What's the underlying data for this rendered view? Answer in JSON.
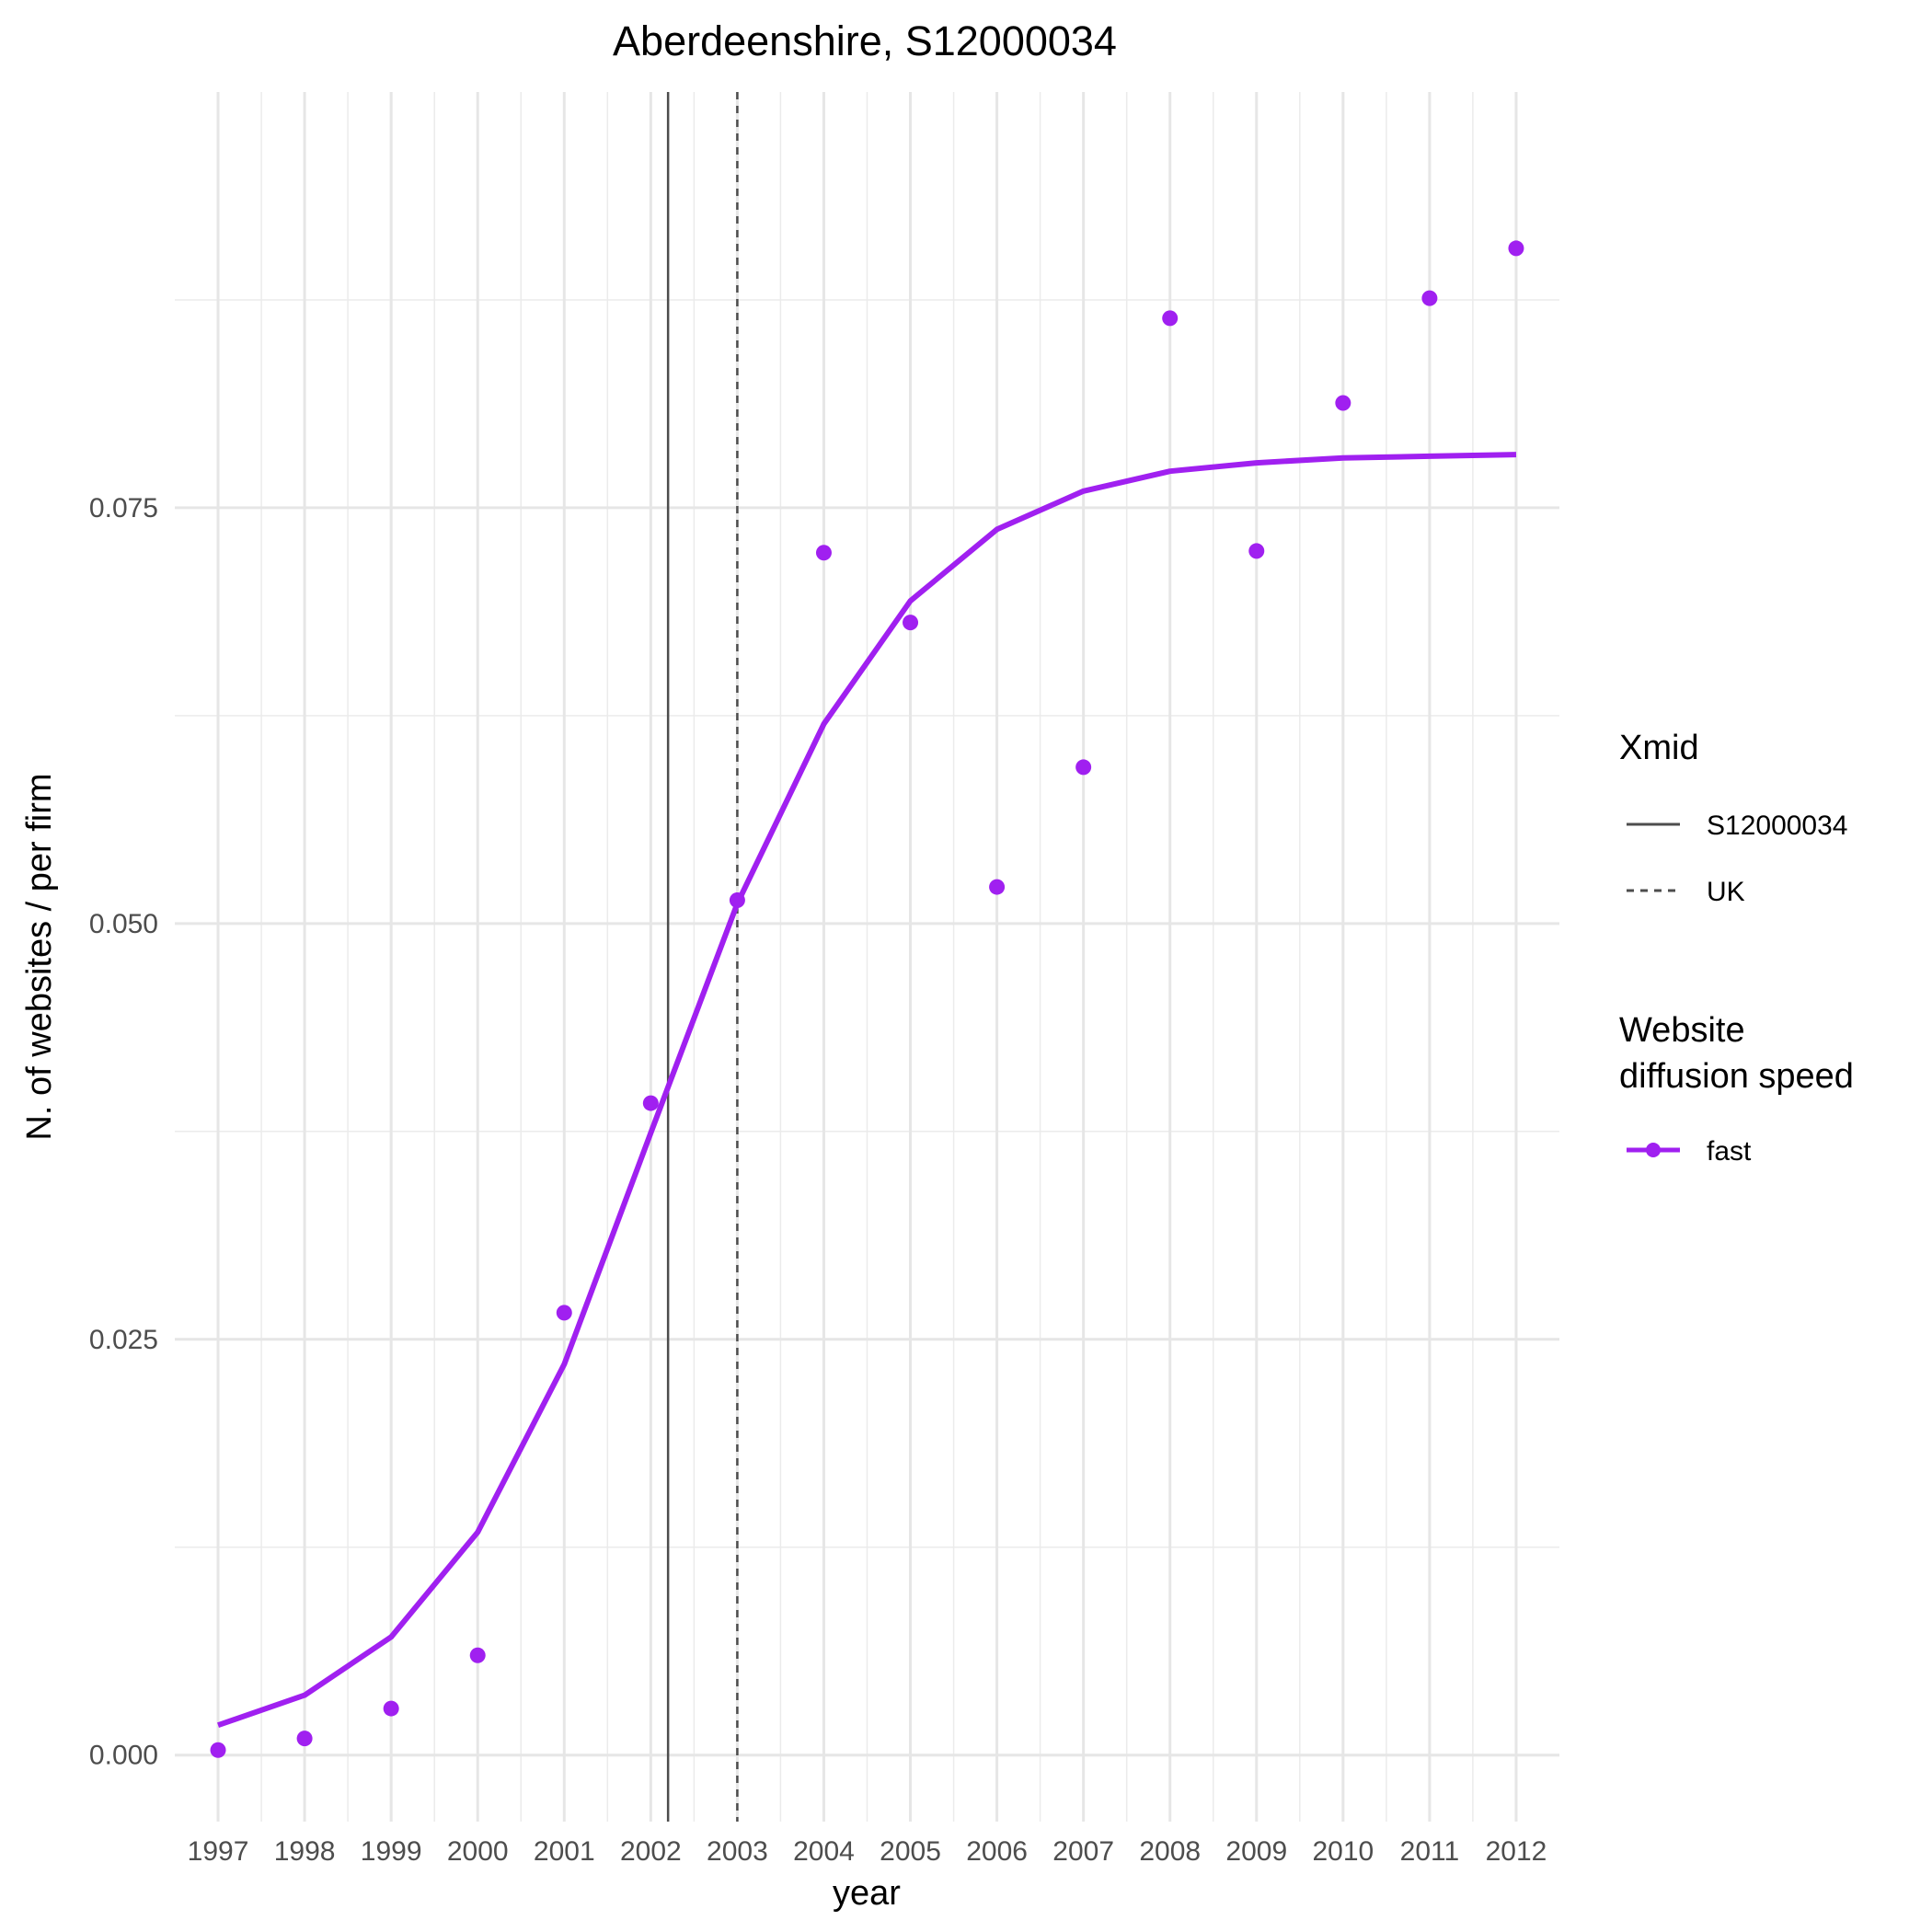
{
  "chart_data": {
    "type": "line",
    "title": "Aberdeenshire, S12000034",
    "xlabel": "year",
    "ylabel": "N. of websites / per firm",
    "x_ticks": [
      "1997",
      "1998",
      "1999",
      "2000",
      "2001",
      "2002",
      "2003",
      "2004",
      "2005",
      "2006",
      "2007",
      "2008",
      "2009",
      "2010",
      "2011",
      "2012"
    ],
    "y_ticks": [
      "0.000",
      "0.025",
      "0.050",
      "0.075"
    ],
    "ylim": [
      -0.004,
      0.1
    ],
    "xlim": [
      1996.5,
      2012.5
    ],
    "grid": true,
    "series": [
      {
        "name": "fast",
        "color": "#a020f0",
        "x": [
          1997,
          1998,
          1999,
          2000,
          2001,
          2002,
          2003,
          2004,
          2005,
          2006,
          2007,
          2008,
          2009,
          2010,
          2011,
          2012
        ],
        "fitted": [
          0.0018,
          0.0036,
          0.0071,
          0.0134,
          0.0235,
          0.0374,
          0.0512,
          0.062,
          0.0694,
          0.0737,
          0.076,
          0.0772,
          0.0777,
          0.078,
          0.0781,
          0.0782
        ],
        "observed": [
          0.0003,
          0.001,
          0.0028,
          0.006,
          0.0266,
          0.0392,
          0.0514,
          0.0723,
          0.0681,
          0.0522,
          0.0594,
          0.0864,
          0.0724,
          0.0813,
          0.0876,
          0.0906
        ]
      }
    ],
    "reference_lines": [
      {
        "name": "S12000034",
        "x": 2002.2,
        "style": "solid",
        "color": "#4d4d4d"
      },
      {
        "name": "UK",
        "x": 2003.0,
        "style": "dashed",
        "color": "#4d4d4d"
      }
    ],
    "legend": {
      "placement": "right",
      "xmid_title": "Xmid",
      "xmid_items": [
        "S12000034",
        "UK"
      ],
      "speed_title_line1": "Website",
      "speed_title_line2": "diffusion speed",
      "speed_items": [
        "fast"
      ]
    }
  }
}
